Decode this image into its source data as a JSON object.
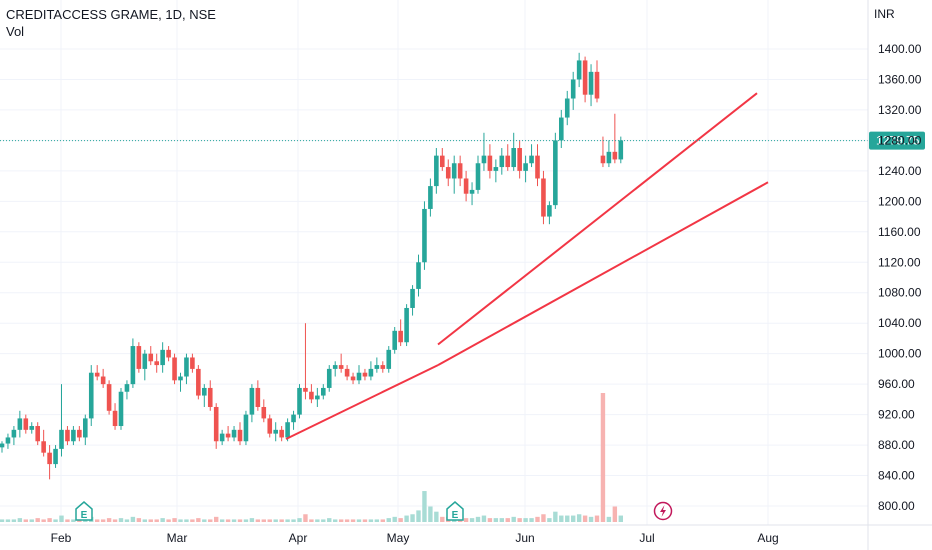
{
  "header": {
    "symbol": "CREDITACCESS GRAME, 1D, NSE",
    "volume_label": "Vol",
    "currency": "INR"
  },
  "colors": {
    "up": "#26a69a",
    "down": "#ef5350",
    "up_vol": "#a8dcd5",
    "down_vol": "#f7b3b1",
    "trendline": "#f23645",
    "price_line": "#26a69a",
    "grid": "#f0f3fa",
    "axis_text": "#131722"
  },
  "icons": {
    "earnings": "earnings-e-icon",
    "dividend": "lightning-icon",
    "earnings_label": "E"
  },
  "chart_data": {
    "type": "candlestick",
    "y_axis": {
      "ticks": [
        "1400.00",
        "1360.00",
        "1320.00",
        "1280.00",
        "1240.00",
        "1200.00",
        "1160.00",
        "1120.00",
        "1080.00",
        "1040.00",
        "1000.00",
        "960.00",
        "920.00",
        "880.00",
        "840.00",
        "800.00"
      ],
      "range": [
        785,
        1415
      ],
      "position": "right"
    },
    "x_axis": {
      "ticks": [
        "Feb",
        "Mar",
        "Apr",
        "May",
        "Jun",
        "Jul",
        "Aug"
      ]
    },
    "last_price": "1279.75",
    "candles": [
      [
        877,
        885,
        870,
        882
      ],
      [
        882,
        895,
        875,
        890
      ],
      [
        890,
        905,
        880,
        900
      ],
      [
        900,
        925,
        890,
        915
      ],
      [
        915,
        920,
        895,
        900
      ],
      [
        900,
        910,
        895,
        905
      ],
      [
        905,
        910,
        880,
        885
      ],
      [
        885,
        900,
        865,
        870
      ],
      [
        870,
        880,
        835,
        855
      ],
      [
        855,
        880,
        850,
        875
      ],
      [
        875,
        960,
        865,
        900
      ],
      [
        900,
        905,
        880,
        885
      ],
      [
        885,
        905,
        880,
        900
      ],
      [
        900,
        905,
        885,
        890
      ],
      [
        890,
        920,
        880,
        915
      ],
      [
        915,
        985,
        905,
        975
      ],
      [
        975,
        985,
        965,
        970
      ],
      [
        970,
        980,
        955,
        960
      ],
      [
        960,
        965,
        920,
        925
      ],
      [
        925,
        935,
        900,
        905
      ],
      [
        905,
        955,
        900,
        950
      ],
      [
        950,
        965,
        940,
        960
      ],
      [
        960,
        1020,
        955,
        1010
      ],
      [
        1010,
        1015,
        975,
        980
      ],
      [
        980,
        1005,
        965,
        1000
      ],
      [
        1000,
        1010,
        985,
        990
      ],
      [
        990,
        1000,
        975,
        985
      ],
      [
        985,
        1015,
        975,
        1005
      ],
      [
        1005,
        1010,
        990,
        995
      ],
      [
        995,
        1000,
        960,
        965
      ],
      [
        965,
        975,
        950,
        970
      ],
      [
        970,
        1000,
        960,
        995
      ],
      [
        995,
        1000,
        975,
        980
      ],
      [
        980,
        985,
        940,
        945
      ],
      [
        945,
        960,
        930,
        955
      ],
      [
        955,
        965,
        925,
        930
      ],
      [
        930,
        935,
        875,
        885
      ],
      [
        885,
        900,
        880,
        895
      ],
      [
        895,
        905,
        885,
        890
      ],
      [
        890,
        905,
        885,
        900
      ],
      [
        900,
        910,
        880,
        885
      ],
      [
        885,
        925,
        880,
        920
      ],
      [
        920,
        960,
        910,
        955
      ],
      [
        955,
        965,
        925,
        930
      ],
      [
        930,
        940,
        910,
        915
      ],
      [
        915,
        920,
        890,
        895
      ],
      [
        895,
        910,
        885,
        900
      ],
      [
        900,
        905,
        885,
        890
      ],
      [
        890,
        915,
        885,
        910
      ],
      [
        910,
        925,
        900,
        920
      ],
      [
        920,
        960,
        915,
        955
      ],
      [
        955,
        1040,
        940,
        950
      ],
      [
        950,
        960,
        935,
        940
      ],
      [
        940,
        955,
        930,
        945
      ],
      [
        945,
        960,
        940,
        955
      ],
      [
        955,
        985,
        950,
        980
      ],
      [
        980,
        990,
        970,
        985
      ],
      [
        985,
        1000,
        975,
        980
      ],
      [
        980,
        985,
        965,
        970
      ],
      [
        970,
        975,
        960,
        965
      ],
      [
        965,
        985,
        960,
        975
      ],
      [
        975,
        980,
        965,
        970
      ],
      [
        970,
        990,
        965,
        980
      ],
      [
        980,
        995,
        975,
        985
      ],
      [
        985,
        990,
        975,
        980
      ],
      [
        980,
        1010,
        975,
        1005
      ],
      [
        1005,
        1035,
        1000,
        1030
      ],
      [
        1030,
        1045,
        1010,
        1015
      ],
      [
        1015,
        1065,
        1010,
        1060
      ],
      [
        1060,
        1090,
        1050,
        1085
      ],
      [
        1085,
        1130,
        1075,
        1120
      ],
      [
        1120,
        1200,
        1110,
        1190
      ],
      [
        1190,
        1230,
        1180,
        1220
      ],
      [
        1220,
        1270,
        1210,
        1260
      ],
      [
        1260,
        1270,
        1240,
        1245
      ],
      [
        1245,
        1255,
        1220,
        1230
      ],
      [
        1230,
        1260,
        1210,
        1250
      ],
      [
        1250,
        1260,
        1220,
        1230
      ],
      [
        1230,
        1240,
        1200,
        1210
      ],
      [
        1210,
        1225,
        1195,
        1215
      ],
      [
        1215,
        1260,
        1210,
        1250
      ],
      [
        1250,
        1290,
        1240,
        1260
      ],
      [
        1260,
        1275,
        1230,
        1240
      ],
      [
        1240,
        1255,
        1225,
        1245
      ],
      [
        1245,
        1270,
        1235,
        1260
      ],
      [
        1260,
        1275,
        1240,
        1245
      ],
      [
        1245,
        1290,
        1240,
        1270
      ],
      [
        1270,
        1280,
        1230,
        1240
      ],
      [
        1240,
        1260,
        1225,
        1250
      ],
      [
        1250,
        1275,
        1245,
        1260
      ],
      [
        1260,
        1275,
        1220,
        1230
      ],
      [
        1230,
        1240,
        1170,
        1180
      ],
      [
        1180,
        1200,
        1170,
        1195
      ],
      [
        1195,
        1290,
        1190,
        1280
      ],
      [
        1280,
        1320,
        1270,
        1310
      ],
      [
        1310,
        1345,
        1300,
        1335
      ],
      [
        1335,
        1370,
        1320,
        1360
      ],
      [
        1360,
        1395,
        1350,
        1385
      ],
      [
        1385,
        1390,
        1330,
        1340
      ],
      [
        1340,
        1380,
        1325,
        1370
      ],
      [
        1370,
        1385,
        1330,
        1335
      ],
      [
        1260,
        1285,
        1245,
        1250
      ],
      [
        1250,
        1280,
        1245,
        1265
      ],
      [
        1265,
        1315,
        1250,
        1255
      ],
      [
        1255,
        1285,
        1250,
        1280
      ]
    ],
    "volume_max": 1.0,
    "volumes": [
      0.02,
      0.02,
      0.02,
      0.03,
      0.02,
      0.02,
      0.03,
      0.02,
      0.03,
      0.02,
      0.05,
      0.02,
      0.02,
      0.02,
      0.02,
      0.04,
      0.02,
      0.02,
      0.03,
      0.02,
      0.03,
      0.02,
      0.04,
      0.03,
      0.02,
      0.02,
      0.02,
      0.03,
      0.02,
      0.03,
      0.02,
      0.02,
      0.02,
      0.03,
      0.02,
      0.02,
      0.04,
      0.02,
      0.02,
      0.02,
      0.02,
      0.02,
      0.03,
      0.02,
      0.02,
      0.02,
      0.02,
      0.02,
      0.02,
      0.02,
      0.03,
      0.06,
      0.02,
      0.02,
      0.02,
      0.03,
      0.02,
      0.02,
      0.02,
      0.02,
      0.02,
      0.02,
      0.02,
      0.02,
      0.02,
      0.03,
      0.04,
      0.03,
      0.05,
      0.06,
      0.09,
      0.24,
      0.12,
      0.08,
      0.04,
      0.04,
      0.04,
      0.03,
      0.03,
      0.03,
      0.04,
      0.05,
      0.03,
      0.03,
      0.03,
      0.03,
      0.04,
      0.03,
      0.03,
      0.03,
      0.04,
      0.06,
      0.03,
      0.08,
      0.05,
      0.05,
      0.05,
      0.06,
      0.05,
      0.04,
      0.05,
      1.0,
      0.04,
      0.12,
      0.05
    ],
    "trendlines": [
      {
        "from": {
          "index": 48,
          "price": 888
        },
        "to": {
          "index": 130,
          "price": 1345
        }
      },
      {
        "from": {
          "index": 48,
          "price": 888
        },
        "to": {
          "index": 132,
          "price": 1225
        }
      }
    ]
  }
}
